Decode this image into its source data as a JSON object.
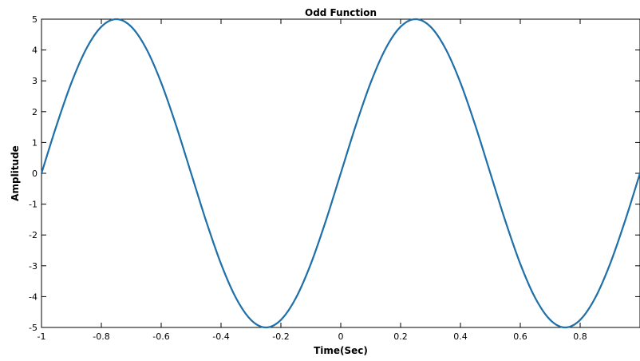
{
  "chart_data": {
    "type": "line",
    "title": "Odd Function",
    "xlabel": "Time(Sec)",
    "ylabel": "Amplitude",
    "xlim": [
      -1,
      1
    ],
    "ylim": [
      -5,
      5
    ],
    "x_ticks": [
      -1,
      -0.8,
      -0.6,
      -0.4,
      -0.2,
      0,
      0.2,
      0.4,
      0.6,
      0.8
    ],
    "x_tick_labels": [
      "-1",
      "-0.8",
      "-0.6",
      "-0.4",
      "-0.2",
      "0",
      "0.2",
      "0.4",
      "0.6",
      "0.8"
    ],
    "y_ticks": [
      -5,
      -4,
      -3,
      -2,
      -1,
      0,
      1,
      2,
      3,
      4,
      5
    ],
    "y_tick_labels": [
      "-5",
      "-4",
      "-3",
      "-2",
      "-1",
      "0",
      "1",
      "2",
      "3",
      "4",
      "5"
    ],
    "grid": false,
    "series": [
      {
        "color": "#1f6fa8",
        "x": [
          -1.0,
          -0.95,
          -0.9,
          -0.85,
          -0.8,
          -0.75,
          -0.7,
          -0.65,
          -0.6,
          -0.55,
          -0.5,
          -0.45,
          -0.4,
          -0.35,
          -0.3,
          -0.25,
          -0.2,
          -0.15,
          -0.1,
          -0.05,
          0.0,
          0.05,
          0.1,
          0.15,
          0.2,
          0.25,
          0.3,
          0.35,
          0.4,
          0.45,
          0.5,
          0.55,
          0.6,
          0.65,
          0.7,
          0.75,
          0.8,
          0.85,
          0.9,
          0.95,
          1.0
        ],
        "y": [
          0.0,
          1.545,
          2.939,
          4.045,
          4.755,
          5.0,
          4.755,
          4.045,
          2.939,
          1.545,
          0.0,
          -1.545,
          -2.939,
          -4.045,
          -4.755,
          -5.0,
          -4.755,
          -4.045,
          -2.939,
          -1.545,
          0.0,
          1.545,
          2.939,
          4.045,
          4.755,
          5.0,
          4.755,
          4.045,
          2.939,
          1.545,
          0.0,
          -1.545,
          -2.939,
          -4.045,
          -4.755,
          -5.0,
          -4.755,
          -4.045,
          -2.939,
          -1.545,
          0.0
        ]
      }
    ]
  }
}
